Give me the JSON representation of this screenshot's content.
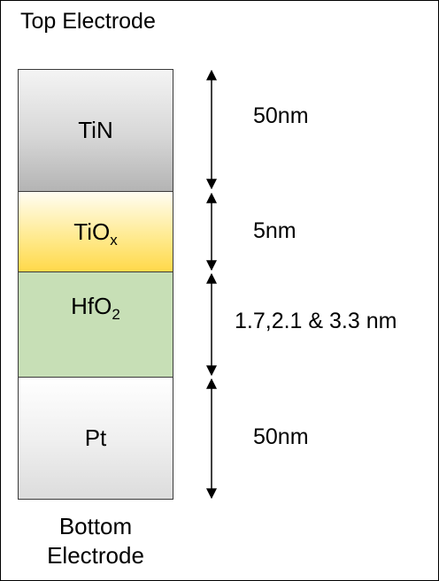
{
  "top_label": "Top Electrode",
  "bottom_label_line1": "Bottom",
  "bottom_label_line2": "Electrode",
  "layers": {
    "tin": {
      "label": "TiN"
    },
    "tiox": {
      "label": "TiO",
      "sub": "x"
    },
    "hfo2": {
      "label": "HfO",
      "sub": "2"
    },
    "pt": {
      "label": "Pt"
    }
  },
  "thickness": {
    "tin": "50nm",
    "tiox": "5nm",
    "hfo2": "1.7,2.1 & 3.3 nm",
    "pt": "50nm"
  }
}
